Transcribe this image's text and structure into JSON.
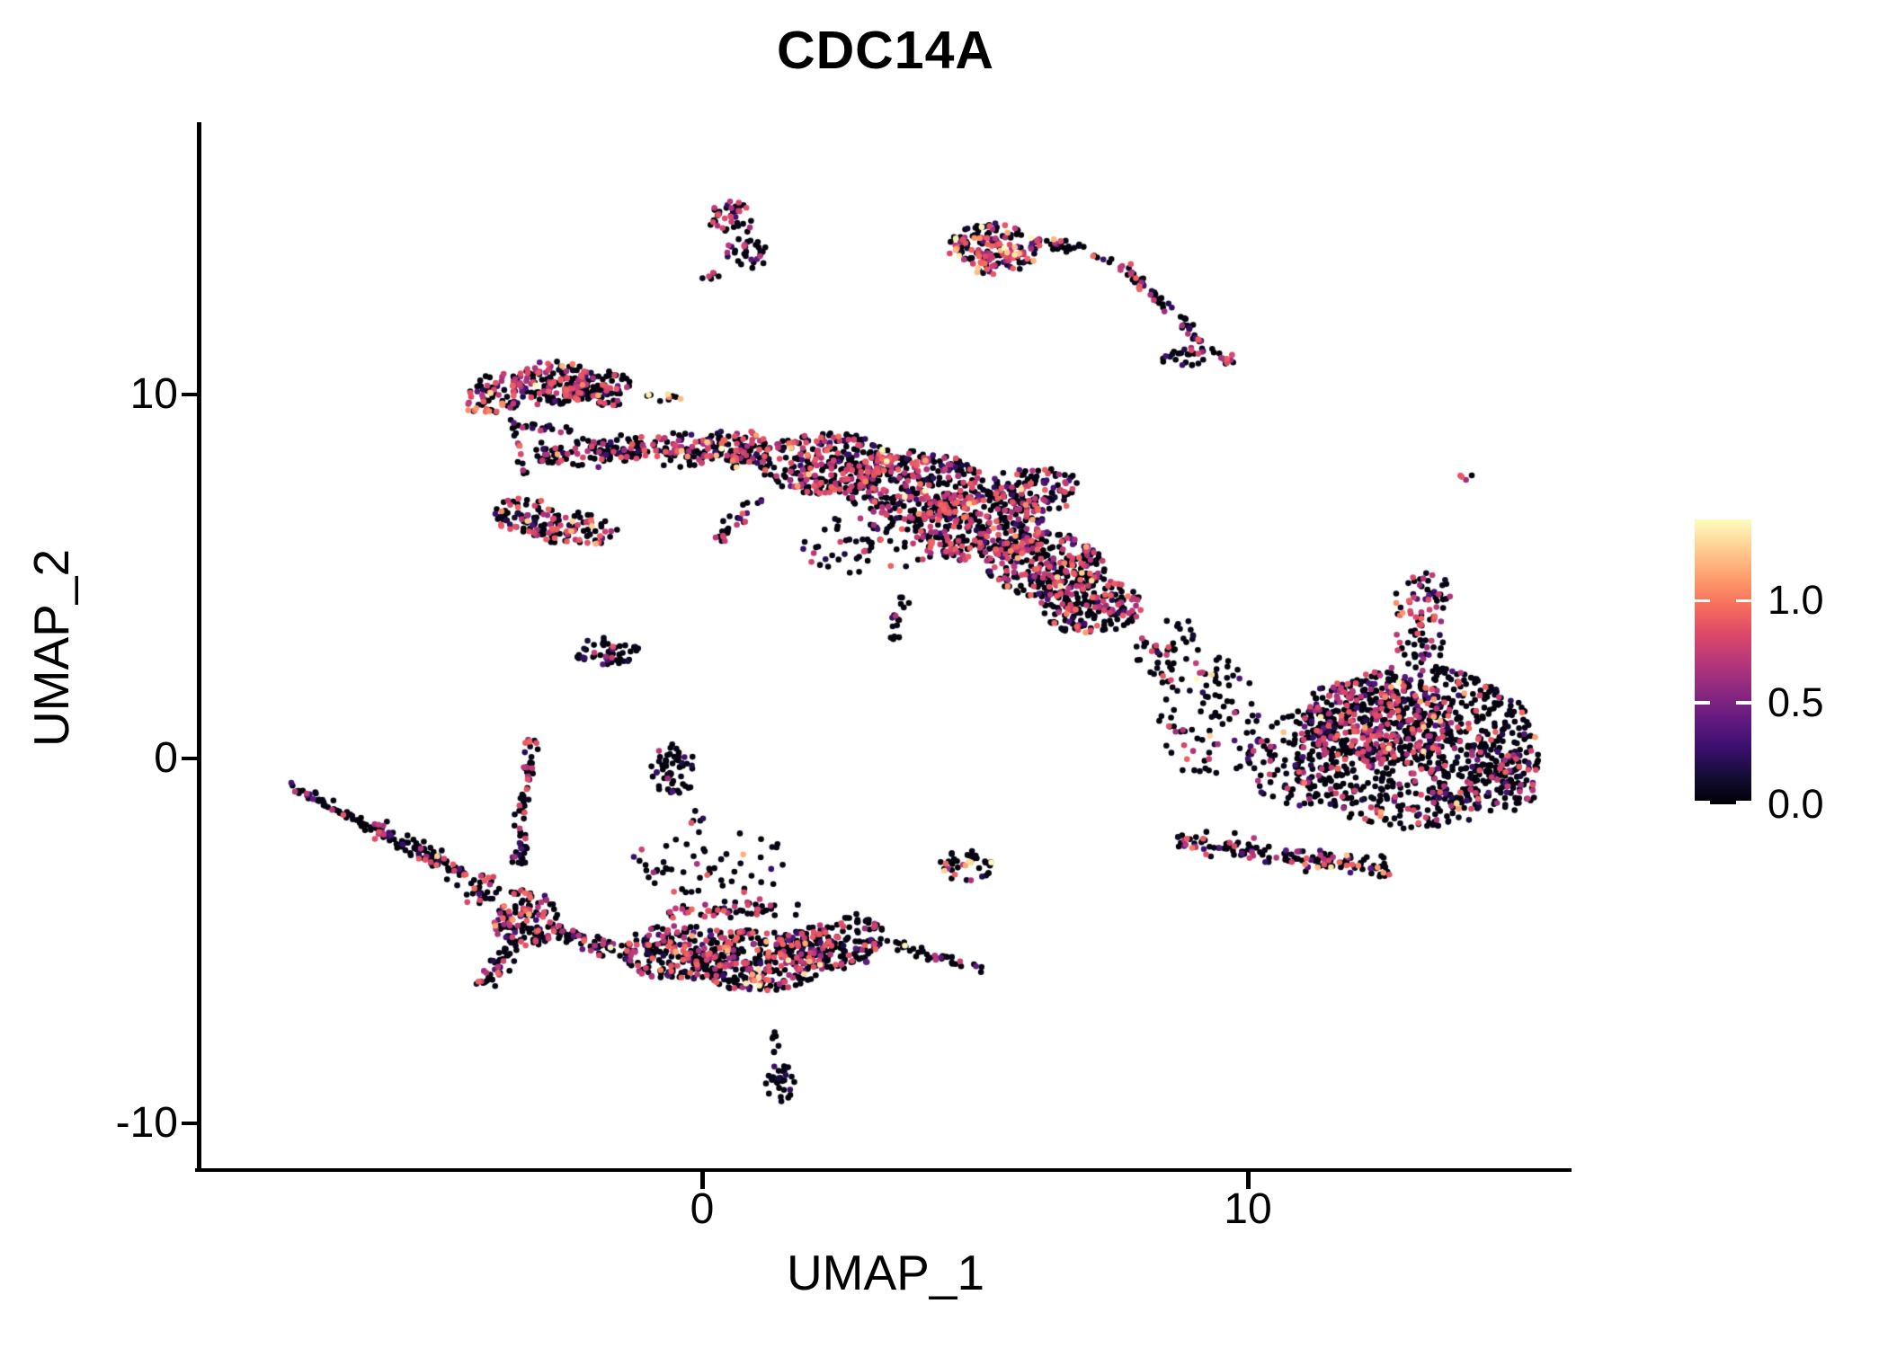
{
  "chart_data": {
    "type": "scatter",
    "title": "CDC14A",
    "xlabel": "UMAP_1",
    "ylabel": "UMAP_2",
    "xlim": [
      -9.2,
      15.9
    ],
    "ylim": [
      -11.3,
      17.4
    ],
    "x_ticks": [
      0,
      10
    ],
    "x_tick_labels": [
      "0",
      "10"
    ],
    "y_ticks": [
      10,
      0,
      -10
    ],
    "y_tick_labels": [
      "10",
      "0",
      "-10"
    ],
    "grid": false,
    "background": "#ffffff",
    "axis_color": "#000000",
    "text_color": "#000000",
    "point_radius_px": 3.3,
    "seed": 1337,
    "colorbar": {
      "position": "right",
      "min": 0.0,
      "max": 1.4,
      "ticks": [
        1.0,
        0.5,
        0.0
      ],
      "tick_labels": [
        "1.0",
        "0.5",
        "0.0"
      ],
      "colormap": "magma",
      "stops": [
        [
          0.0,
          "#000004"
        ],
        [
          0.1,
          "#140e36"
        ],
        [
          0.2,
          "#3b0f70"
        ],
        [
          0.3,
          "#641a80"
        ],
        [
          0.4,
          "#8c2981"
        ],
        [
          0.5,
          "#b73779"
        ],
        [
          0.6,
          "#de4968"
        ],
        [
          0.7,
          "#f7705c"
        ],
        [
          0.8,
          "#fe9f6d"
        ],
        [
          0.9,
          "#fecf92"
        ],
        [
          1.0,
          "#fcfdbf"
        ]
      ]
    },
    "value_model": {
      "zero_max": 0.06,
      "low_frac": 0.09,
      "low_range": [
        0.08,
        0.42
      ],
      "mid_range": [
        0.6,
        0.95
      ],
      "hi_range": [
        0.95,
        1.4
      ]
    },
    "clusters": [
      {
        "shape": "ellipse",
        "cx": 0.55,
        "cy": 14.85,
        "rx": 0.45,
        "ry": 0.5,
        "n": 42,
        "mid": 0.38,
        "hi": 0.02
      },
      {
        "shape": "ellipse",
        "cx": 0.82,
        "cy": 13.88,
        "rx": 0.4,
        "ry": 0.42,
        "n": 30,
        "mid": 0.28,
        "hi": 0.0
      },
      {
        "shape": "ellipse",
        "cx": 0.18,
        "cy": 13.22,
        "rx": 0.2,
        "ry": 0.14,
        "n": 6,
        "mid": 0.12,
        "hi": 0.0
      },
      {
        "shape": "ellipse",
        "cx": 5.35,
        "cy": 14.0,
        "rx": 0.85,
        "ry": 0.72,
        "n": 170,
        "mid": 0.38,
        "hi": 0.1
      },
      {
        "shape": "strip",
        "x1": 6.1,
        "y1": 14.25,
        "x2": 7.0,
        "y2": 13.95,
        "w": 0.22,
        "n": 30,
        "mid": 0.2,
        "hi": 0.04
      },
      {
        "shape": "strip",
        "x1": 7.1,
        "y1": 13.8,
        "x2": 7.5,
        "y2": 13.7,
        "w": 0.1,
        "n": 6,
        "mid": 0.0,
        "hi": 0.25
      },
      {
        "shape": "strip",
        "x1": 7.75,
        "y1": 13.55,
        "x2": 8.75,
        "y2": 12.1,
        "w": 0.2,
        "n": 40,
        "mid": 0.18,
        "hi": 0.05
      },
      {
        "shape": "strip",
        "x1": 8.75,
        "y1": 12.1,
        "x2": 9.1,
        "y2": 11.45,
        "w": 0.15,
        "n": 18,
        "mid": 0.22,
        "hi": 0.0
      },
      {
        "shape": "ellipse",
        "cx": 9.0,
        "cy": 11.05,
        "rx": 0.65,
        "ry": 0.28,
        "n": 30,
        "mid": 0.15,
        "hi": 0.0
      },
      {
        "shape": "ellipse",
        "cx": 9.62,
        "cy": 11.0,
        "rx": 0.22,
        "ry": 0.18,
        "n": 8,
        "mid": 0.5,
        "hi": 0.0
      },
      {
        "shape": "ellipse",
        "cx": 14.0,
        "cy": 7.72,
        "rx": 0.15,
        "ry": 0.12,
        "n": 4,
        "mid": 0.5,
        "hi": 0.0
      },
      {
        "shape": "ellipse",
        "cx": -3.75,
        "cy": 10.05,
        "rx": 0.52,
        "ry": 0.55,
        "n": 65,
        "mid": 0.3,
        "hi": 0.04
      },
      {
        "shape": "ellipse",
        "cx": -2.75,
        "cy": 10.3,
        "rx": 0.8,
        "ry": 0.62,
        "n": 150,
        "mid": 0.32,
        "hi": 0.05
      },
      {
        "shape": "ellipse",
        "cx": -1.85,
        "cy": 10.15,
        "rx": 0.62,
        "ry": 0.5,
        "n": 90,
        "mid": 0.26,
        "hi": 0.03
      },
      {
        "shape": "ellipse",
        "cx": -4.1,
        "cy": 9.62,
        "rx": 0.28,
        "ry": 0.2,
        "n": 9,
        "mid": 0.2,
        "hi": 0.55
      },
      {
        "shape": "strip",
        "x1": -1.2,
        "y1": 10.0,
        "x2": -0.35,
        "y2": 9.9,
        "w": 0.14,
        "n": 10,
        "mid": 0.2,
        "hi": 0.2
      },
      {
        "shape": "strip",
        "x1": -3.6,
        "y1": 9.25,
        "x2": -2.4,
        "y2": 8.95,
        "w": 0.2,
        "n": 22,
        "mid": 0.15,
        "hi": 0.0
      },
      {
        "shape": "strip",
        "x1": -3.4,
        "y1": 9.0,
        "x2": -3.25,
        "y2": 7.75,
        "w": 0.1,
        "n": 11,
        "mid": 0.25,
        "hi": 0.1
      },
      {
        "shape": "ellipse",
        "cx": -3.25,
        "cy": 6.7,
        "rx": 0.58,
        "ry": 0.48,
        "n": 62,
        "mid": 0.3,
        "hi": 0.03
      },
      {
        "shape": "ellipse",
        "cx": -2.35,
        "cy": 6.3,
        "rx": 0.85,
        "ry": 0.48,
        "n": 85,
        "mid": 0.3,
        "hi": 0.04
      },
      {
        "shape": "ellipse",
        "cx": -1.75,
        "cy": 2.95,
        "rx": 0.62,
        "ry": 0.4,
        "n": 48,
        "mid": 0.1,
        "hi": 0.0
      },
      {
        "shape": "ellipse",
        "cx": -0.52,
        "cy": -0.35,
        "rx": 0.42,
        "ry": 0.75,
        "n": 55,
        "mid": 0.06,
        "hi": 0.0
      },
      {
        "shape": "ellipse",
        "cx": -0.15,
        "cy": -1.6,
        "rx": 0.2,
        "ry": 0.25,
        "n": 5,
        "mid": 0.2,
        "hi": 0.0
      },
      {
        "shape": "strip",
        "x1": -3.05,
        "y1": 8.3,
        "x2": -0.5,
        "y2": 8.55,
        "w": 0.5,
        "n": 150,
        "mid": 0.26,
        "hi": 0.01
      },
      {
        "shape": "strip",
        "x1": -0.5,
        "y1": 8.55,
        "x2": 1.2,
        "y2": 8.5,
        "w": 0.75,
        "n": 170,
        "mid": 0.3,
        "hi": 0.02
      },
      {
        "shape": "ellipse",
        "cx": 2.3,
        "cy": 8.1,
        "rx": 1.25,
        "ry": 0.85,
        "n": 290,
        "mid": 0.32,
        "hi": 0.02
      },
      {
        "shape": "ellipse",
        "cx": 3.9,
        "cy": 7.5,
        "rx": 1.3,
        "ry": 0.95,
        "n": 330,
        "mid": 0.36,
        "hi": 0.03
      },
      {
        "shape": "ellipse",
        "cx": 5.1,
        "cy": 6.4,
        "rx": 1.25,
        "ry": 1.0,
        "n": 310,
        "mid": 0.36,
        "hi": 0.03
      },
      {
        "shape": "ellipse",
        "cx": 6.3,
        "cy": 5.3,
        "rx": 1.1,
        "ry": 0.9,
        "n": 260,
        "mid": 0.32,
        "hi": 0.03
      },
      {
        "shape": "ellipse",
        "cx": 7.1,
        "cy": 4.2,
        "rx": 0.95,
        "ry": 0.8,
        "n": 190,
        "mid": 0.26,
        "hi": 0.02
      },
      {
        "shape": "ellipse",
        "cx": 3.0,
        "cy": 5.9,
        "rx": 1.3,
        "ry": 0.85,
        "n": 70,
        "mid": 0.2,
        "hi": 0.02
      },
      {
        "shape": "ellipse",
        "cx": 6.1,
        "cy": 7.4,
        "rx": 0.85,
        "ry": 0.65,
        "n": 110,
        "mid": 0.3,
        "hi": 0.02
      },
      {
        "shape": "strip",
        "x1": 3.7,
        "y1": 4.5,
        "x2": 3.45,
        "y2": 3.1,
        "w": 0.18,
        "n": 16,
        "mid": 0.1,
        "hi": 0.0
      },
      {
        "shape": "strip",
        "x1": 1.1,
        "y1": 7.2,
        "x2": 0.3,
        "y2": 6.0,
        "w": 0.25,
        "n": 26,
        "mid": 0.15,
        "hi": 0.0
      },
      {
        "shape": "ellipse",
        "cx": 9.3,
        "cy": 1.1,
        "rx": 0.95,
        "ry": 1.7,
        "n": 90,
        "mid": 0.12,
        "hi": 0.02
      },
      {
        "shape": "ellipse",
        "cx": 8.55,
        "cy": 3.0,
        "rx": 0.65,
        "ry": 0.95,
        "n": 48,
        "mid": 0.15,
        "hi": 0.0
      },
      {
        "shape": "ellipse",
        "cx": 13.05,
        "cy": 0.3,
        "rx": 2.3,
        "ry": 2.25,
        "n": 850,
        "mid": 0.16,
        "hi": 0.015
      },
      {
        "shape": "ellipse",
        "cx": 12.35,
        "cy": 1.1,
        "rx": 1.4,
        "ry": 1.25,
        "n": 260,
        "mid": 0.38,
        "hi": 0.02
      },
      {
        "shape": "ellipse",
        "cx": 13.25,
        "cy": 4.35,
        "rx": 0.6,
        "ry": 0.75,
        "n": 55,
        "mid": 0.35,
        "hi": 0.03
      },
      {
        "shape": "ellipse",
        "cx": 13.1,
        "cy": 3.1,
        "rx": 0.5,
        "ry": 0.65,
        "n": 35,
        "mid": 0.2,
        "hi": 0.0
      },
      {
        "shape": "ellipse",
        "cx": 10.85,
        "cy": 0.0,
        "rx": 0.85,
        "ry": 1.35,
        "n": 100,
        "mid": 0.12,
        "hi": 0.02
      },
      {
        "shape": "strip",
        "x1": 8.7,
        "y1": -2.25,
        "x2": 12.6,
        "y2": -3.05,
        "w": 0.4,
        "n": 150,
        "mid": 0.22,
        "hi": 0.04
      },
      {
        "shape": "ellipse",
        "cx": 14.6,
        "cy": -0.5,
        "rx": 0.8,
        "ry": 1.0,
        "n": 90,
        "mid": 0.18,
        "hi": 0.0
      },
      {
        "shape": "strip",
        "x1": -7.55,
        "y1": -0.72,
        "x2": -6.1,
        "y2": -1.85,
        "w": 0.16,
        "n": 48,
        "mid": 0.14,
        "hi": 0.0
      },
      {
        "shape": "strip",
        "x1": -6.1,
        "y1": -1.85,
        "x2": -4.35,
        "y2": -3.2,
        "w": 0.34,
        "n": 105,
        "mid": 0.2,
        "hi": 0.01
      },
      {
        "shape": "strip",
        "x1": -3.1,
        "y1": 0.5,
        "x2": -3.35,
        "y2": -2.9,
        "w": 0.2,
        "n": 65,
        "mid": 0.15,
        "hi": 0.01
      },
      {
        "shape": "ellipse",
        "cx": -3.25,
        "cy": -4.4,
        "rx": 0.6,
        "ry": 0.8,
        "n": 130,
        "mid": 0.22,
        "hi": 0.03
      },
      {
        "shape": "strip",
        "x1": -3.55,
        "y1": -5.2,
        "x2": -4.0,
        "y2": -6.3,
        "w": 0.26,
        "n": 36,
        "mid": 0.15,
        "hi": 0.0
      },
      {
        "shape": "strip",
        "x1": -2.7,
        "y1": -4.7,
        "x2": -1.3,
        "y2": -5.4,
        "w": 0.3,
        "n": 70,
        "mid": 0.15,
        "hi": 0.02
      },
      {
        "shape": "ellipse",
        "cx": -4.1,
        "cy": -3.6,
        "rx": 0.4,
        "ry": 0.5,
        "n": 30,
        "mid": 0.2,
        "hi": 0.0
      },
      {
        "shape": "ellipse",
        "cx": -0.45,
        "cy": -5.3,
        "rx": 1.05,
        "ry": 0.8,
        "n": 210,
        "mid": 0.26,
        "hi": 0.03
      },
      {
        "shape": "ellipse",
        "cx": 1.0,
        "cy": -5.55,
        "rx": 1.25,
        "ry": 0.85,
        "n": 270,
        "mid": 0.3,
        "hi": 0.04
      },
      {
        "shape": "ellipse",
        "cx": 2.3,
        "cy": -5.2,
        "rx": 0.95,
        "ry": 0.65,
        "n": 170,
        "mid": 0.26,
        "hi": 0.02
      },
      {
        "shape": "strip",
        "x1": -0.6,
        "y1": -4.2,
        "x2": 1.8,
        "y2": -4.1,
        "w": 0.35,
        "n": 55,
        "mid": 0.28,
        "hi": 0.0
      },
      {
        "shape": "strip",
        "x1": 3.1,
        "y1": -5.0,
        "x2": 5.15,
        "y2": -5.75,
        "w": 0.22,
        "n": 40,
        "mid": 0.18,
        "hi": 0.02
      },
      {
        "shape": "ellipse",
        "cx": 4.85,
        "cy": -2.95,
        "rx": 0.5,
        "ry": 0.42,
        "n": 42,
        "mid": 0.22,
        "hi": 0.1
      },
      {
        "shape": "ellipse",
        "cx": 0.2,
        "cy": -2.9,
        "rx": 1.5,
        "ry": 0.9,
        "n": 55,
        "mid": 0.12,
        "hi": 0.02
      },
      {
        "shape": "strip",
        "x1": 2.6,
        "y1": -4.35,
        "x2": 3.3,
        "y2": -4.7,
        "w": 0.2,
        "n": 25,
        "mid": 0.2,
        "hi": 0.0
      },
      {
        "shape": "strip",
        "x1": 1.35,
        "y1": -7.25,
        "x2": 1.32,
        "y2": -8.1,
        "w": 0.08,
        "n": 7,
        "mid": 0.1,
        "hi": 0.0
      },
      {
        "shape": "ellipse",
        "cx": 1.42,
        "cy": -8.9,
        "rx": 0.3,
        "ry": 0.55,
        "n": 30,
        "mid": 0.08,
        "hi": 0.0
      }
    ]
  }
}
